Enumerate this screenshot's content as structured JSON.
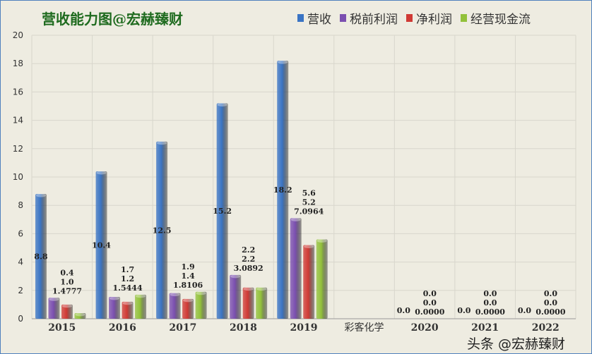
{
  "chart_data": {
    "type": "bar",
    "title": "营收能力图@宏赫臻财",
    "categories": [
      "2015",
      "2016",
      "2017",
      "2018",
      "2019",
      "彩客化学",
      "2020",
      "2021",
      "2022"
    ],
    "ylim": [
      0,
      20
    ],
    "yticks": [
      0,
      2,
      4,
      6,
      8,
      10,
      12,
      14,
      16,
      18,
      20
    ],
    "grid": true,
    "legend_position": "top-right",
    "series": [
      {
        "name": "营收",
        "color": "#3a74c4",
        "values": [
          8.8,
          10.4,
          12.5,
          15.2,
          18.2,
          null,
          0,
          0,
          0
        ],
        "labels": [
          "8.8",
          "10.4",
          "12.5",
          "15.2",
          "18.2",
          "",
          "0.0",
          "0.0",
          "0.0"
        ]
      },
      {
        "name": "税前利润",
        "color": "#7b4fb0",
        "values": [
          1.4777,
          1.5444,
          1.8106,
          3.0892,
          7.0964,
          null,
          0,
          0,
          0
        ],
        "labels": [
          "1.4777",
          "1.5444",
          "1.8106",
          "3.0892",
          "7.0964",
          "",
          "0.0000",
          "0.0000",
          "0.0000"
        ]
      },
      {
        "name": "净利润",
        "color": "#d03a35",
        "values": [
          1.0,
          1.2,
          1.4,
          2.2,
          5.2,
          null,
          0,
          0,
          0
        ],
        "labels": [
          "1.0",
          "1.2",
          "1.4",
          "2.2",
          "5.2",
          "",
          "0.0",
          "0.0",
          "0.0"
        ]
      },
      {
        "name": "经营现金流",
        "color": "#92c13a",
        "values": [
          0.4,
          1.7,
          1.9,
          2.2,
          5.6,
          null,
          0,
          0,
          0
        ],
        "labels": [
          "0.4",
          "1.7",
          "1.9",
          "2.2",
          "5.6",
          "",
          "0.0",
          "0.0",
          "0.0"
        ]
      }
    ]
  },
  "watermark": "头条 @宏赫臻财"
}
